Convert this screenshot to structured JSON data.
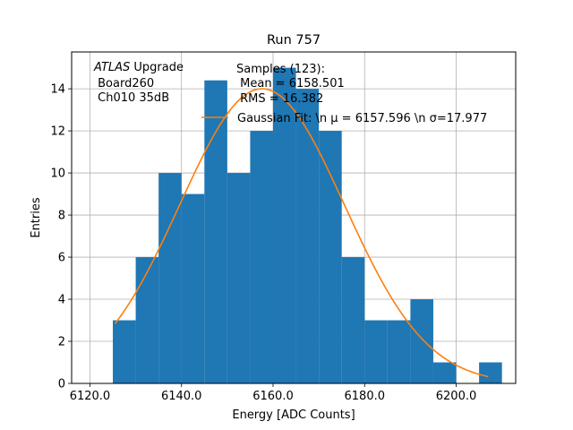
{
  "chart_data": {
    "type": "bar",
    "title": "Run 757",
    "xlabel": "Energy [ADC Counts]",
    "ylabel": "Entries",
    "xlim": [
      6116.0,
      6213.0
    ],
    "ylim": [
      0,
      15.75
    ],
    "grid": true,
    "x_ticks": [
      6120.0,
      6140.0,
      6160.0,
      6180.0,
      6200.0
    ],
    "x_tick_labels": [
      "6120.0",
      "6140.0",
      "6160.0",
      "6180.0",
      "6200.0"
    ],
    "y_ticks": [
      0,
      2,
      4,
      6,
      8,
      10,
      12,
      14
    ],
    "y_tick_labels": [
      "0",
      "2",
      "4",
      "6",
      "8",
      "10",
      "12",
      "14"
    ],
    "bin_width": 5,
    "bins": [
      {
        "x0": 6125,
        "count": 3
      },
      {
        "x0": 6130,
        "count": 6
      },
      {
        "x0": 6135,
        "count": 10
      },
      {
        "x0": 6140,
        "count": 9
      },
      {
        "x0": 6145,
        "count": 14.4
      },
      {
        "x0": 6150,
        "count": 10
      },
      {
        "x0": 6155,
        "count": 12
      },
      {
        "x0": 6160,
        "count": 15
      },
      {
        "x0": 6165,
        "count": 14
      },
      {
        "x0": 6170,
        "count": 12
      },
      {
        "x0": 6175,
        "count": 6
      },
      {
        "x0": 6180,
        "count": 3
      },
      {
        "x0": 6185,
        "count": 3
      },
      {
        "x0": 6190,
        "count": 4
      },
      {
        "x0": 6195,
        "count": 1
      },
      {
        "x0": 6200,
        "count": 0
      },
      {
        "x0": 6205,
        "count": 1
      }
    ],
    "fit": {
      "mu": 6157.596,
      "sigma": 17.977,
      "x_range": [
        6125.5,
        6207.0
      ],
      "peak": 14.0
    },
    "colors": {
      "bars": "#1f77b4",
      "fit": "#ff7f0e",
      "grid": "#b0b0b0"
    },
    "annotations": {
      "atlas_italic": "ATLAS",
      "atlas_rest": " Upgrade",
      "board": " Board260",
      "channel": " Ch010 35dB",
      "samples": "Samples (123):",
      "mean": " Mean = 6158.501",
      "rms": " RMS = 16.382"
    },
    "legend": {
      "placement": "top-right",
      "label": "Gaussian Fit: \\n μ = 6157.596 \\n σ=17.977"
    }
  }
}
